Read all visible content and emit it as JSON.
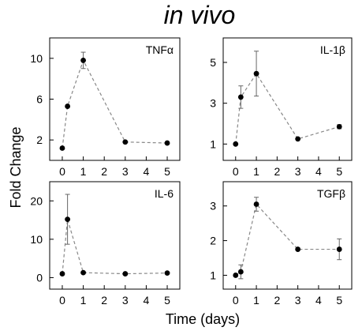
{
  "figure": {
    "title": "in vivo",
    "xlabel": "Time (days)",
    "ylabel": "Fold Change"
  },
  "chart_data": [
    {
      "type": "line",
      "label": "TNFα",
      "x": [
        0,
        0.25,
        1,
        3,
        5
      ],
      "y": [
        1.2,
        5.3,
        9.8,
        1.8,
        1.7
      ],
      "yerr": [
        0,
        0,
        0.8,
        0,
        0
      ],
      "xticks": [
        "0",
        "1",
        "2",
        "3",
        "4",
        "5"
      ],
      "yticks": [
        "2",
        "6",
        "10"
      ],
      "xlim": [
        -0.6,
        5.6
      ],
      "ylim": [
        0,
        12
      ]
    },
    {
      "type": "line",
      "label": "IL-1β",
      "x": [
        0,
        0.25,
        1,
        3,
        5
      ],
      "y": [
        1.0,
        3.3,
        4.45,
        1.25,
        1.85
      ],
      "yerr": [
        0,
        0.55,
        1.1,
        0,
        0.1
      ],
      "xticks": [
        "0",
        "1",
        "2",
        "3",
        "4",
        "5"
      ],
      "yticks": [
        "1",
        "3",
        "5"
      ],
      "xlim": [
        -0.6,
        5.6
      ],
      "ylim": [
        0.2,
        6.2
      ]
    },
    {
      "type": "line",
      "label": "IL-6",
      "x": [
        0,
        0.25,
        1,
        3,
        5
      ],
      "y": [
        1.0,
        15.2,
        1.3,
        1.0,
        1.2
      ],
      "yerr": [
        0,
        6.5,
        0,
        0,
        0
      ],
      "xticks": [
        "0",
        "1",
        "2",
        "3",
        "4",
        "5"
      ],
      "yticks": [
        "0",
        "10",
        "20"
      ],
      "xlim": [
        -0.6,
        5.6
      ],
      "ylim": [
        -3,
        25
      ]
    },
    {
      "type": "line",
      "label": "TGFβ",
      "x": [
        0,
        0.25,
        1,
        3,
        5
      ],
      "y": [
        1.0,
        1.1,
        3.05,
        1.75,
        1.75
      ],
      "yerr": [
        0,
        0.2,
        0.2,
        0,
        0.3
      ],
      "xticks": [
        "0",
        "1",
        "2",
        "3",
        "4",
        "5"
      ],
      "yticks": [
        "1",
        "2",
        "3"
      ],
      "xlim": [
        -0.6,
        5.6
      ],
      "ylim": [
        0.6,
        3.7
      ]
    }
  ]
}
